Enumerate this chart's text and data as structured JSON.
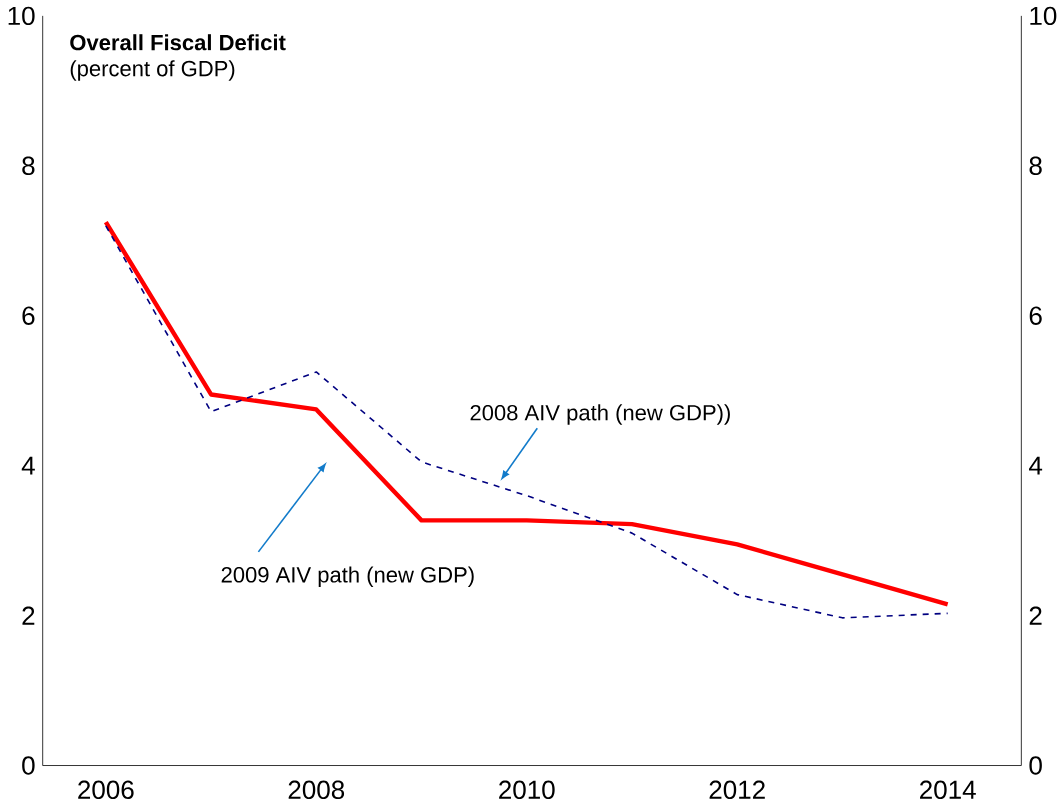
{
  "chart_data": {
    "type": "line",
    "title": "Overall Fiscal Deficit",
    "subtitle": "(percent of GDP)",
    "x": [
      2006,
      2007,
      2008,
      2009,
      2010,
      2011,
      2012,
      2013,
      2014
    ],
    "series": [
      {
        "name": "2009 AIV path (new GDP)",
        "color": "#ff0000",
        "line_style": "solid",
        "values": [
          7.25,
          4.95,
          4.75,
          3.27,
          3.27,
          3.22,
          2.95,
          2.55,
          2.15
        ]
      },
      {
        "name": "2008 AIV path (new GDP))",
        "color": "#000080",
        "line_style": "dashed",
        "values": [
          7.2,
          4.72,
          5.25,
          4.05,
          3.6,
          3.1,
          2.28,
          1.97,
          2.03
        ]
      }
    ],
    "xlim": [
      2005.4,
      2014.7
    ],
    "xticks": [
      2006,
      2008,
      2010,
      2012,
      2014
    ],
    "ylim": [
      0,
      10
    ],
    "yticks": [
      0,
      2,
      4,
      6,
      8,
      10
    ],
    "y2lim": [
      0,
      10
    ],
    "y2ticks": [
      0,
      2,
      4,
      6,
      8,
      10
    ],
    "marker": "none",
    "grid": false
  }
}
